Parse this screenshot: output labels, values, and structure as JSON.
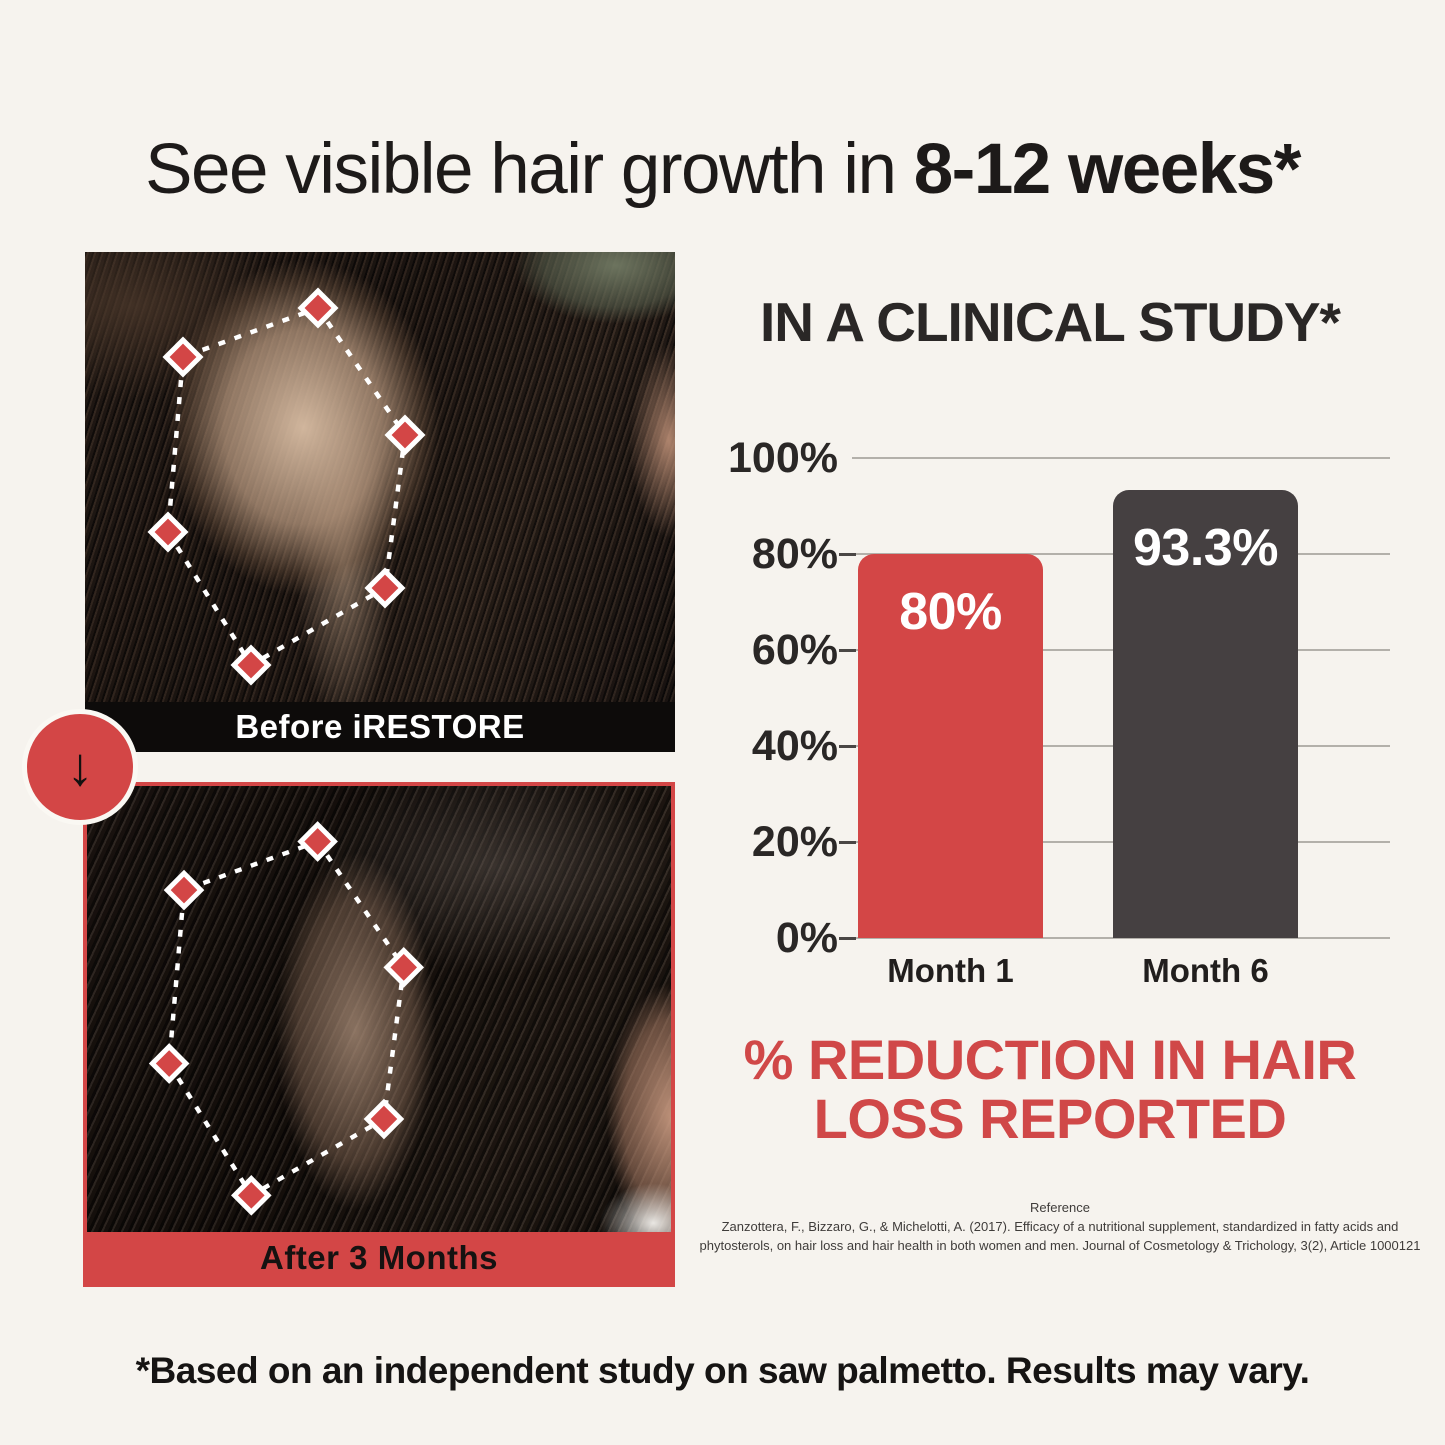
{
  "headline": {
    "regular": "See visible hair growth in ",
    "bold": "8-12 weeks*"
  },
  "before_after": {
    "before_label": "Before iRESTORE",
    "after_label": "After 3 Months",
    "arrow_glyph": "↓"
  },
  "study": {
    "heading": "IN A CLINICAL STUDY*",
    "caption_line1": "% REDUCTION IN HAIR",
    "caption_line2": "LOSS REPORTED",
    "reference_heading": "Reference",
    "reference_line1": "Zanzottera, F., Bizzaro, G., & Michelotti, A. (2017). Efficacy of a nutritional supplement, standardized in fatty acids and",
    "reference_line2": "phytosterols, on hair loss and hair health in both women and men. Journal of Cosmetology & Trichology, 3(2), Article 1000121"
  },
  "disclaimer": "*Based on an independent study on saw palmetto. Results may vary.",
  "colors": {
    "background": "#f6f3ee",
    "accent_red": "#d34646",
    "bar_dark": "#454041",
    "label_black": "#0d0b0a",
    "text_dark": "#1d1a19"
  },
  "chart_data": {
    "type": "bar",
    "title": "IN A CLINICAL STUDY*",
    "categories": [
      "Month 1",
      "Month 6"
    ],
    "values": [
      80,
      93.3
    ],
    "value_labels": [
      "80%",
      "93.3%"
    ],
    "series_colors": [
      "#d34646",
      "#454041"
    ],
    "y_ticks": [
      {
        "label": "100%",
        "value": 100
      },
      {
        "label": "80%",
        "value": 80
      },
      {
        "label": "60%",
        "value": 60
      },
      {
        "label": "40%",
        "value": 40
      },
      {
        "label": "20%",
        "value": 20
      },
      {
        "label": "0%",
        "value": 0
      }
    ],
    "ylim": [
      0,
      100
    ],
    "grid": true,
    "xlabel": "",
    "ylabel": "",
    "legend_position": "none",
    "caption": "% REDUCTION IN HAIR LOSS REPORTED"
  }
}
